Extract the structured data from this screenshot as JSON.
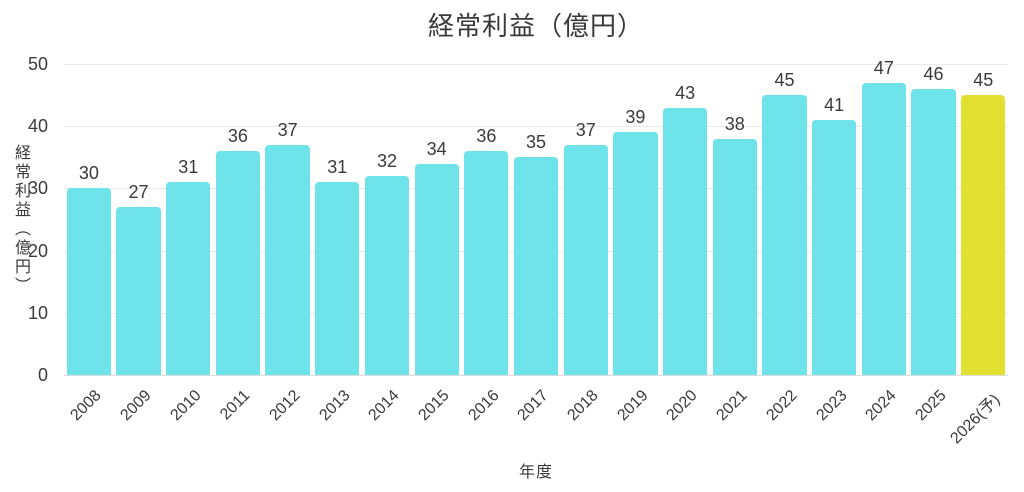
{
  "chart_data": {
    "type": "bar",
    "title": "経常利益（億円）",
    "xlabel": "年度",
    "ylabel": "経常利益（億円）",
    "categories": [
      "2008",
      "2009",
      "2010",
      "2011",
      "2012",
      "2013",
      "2014",
      "2015",
      "2016",
      "2017",
      "2018",
      "2019",
      "2020",
      "2021",
      "2022",
      "2023",
      "2024",
      "2025",
      "2026(予)"
    ],
    "values": [
      30,
      27,
      31,
      36,
      37,
      31,
      32,
      34,
      36,
      35,
      37,
      39,
      43,
      38,
      45,
      41,
      47,
      46,
      45
    ],
    "data_labels": [
      30,
      27,
      31,
      36,
      37,
      31,
      32,
      34,
      36,
      35,
      37,
      39,
      43,
      38,
      45,
      41,
      47,
      46,
      45
    ],
    "highlight_index": 18,
    "ylim": [
      0,
      50
    ],
    "yticks": [
      0,
      10,
      20,
      30,
      40,
      50
    ],
    "grid": "horizontal",
    "legend": false,
    "colors": {
      "bar": "#6ee3e9",
      "highlight_bar": "#e2e030",
      "grid": "#e9e9e9",
      "text": "#3b3b3b",
      "background": "#ffffff"
    }
  }
}
